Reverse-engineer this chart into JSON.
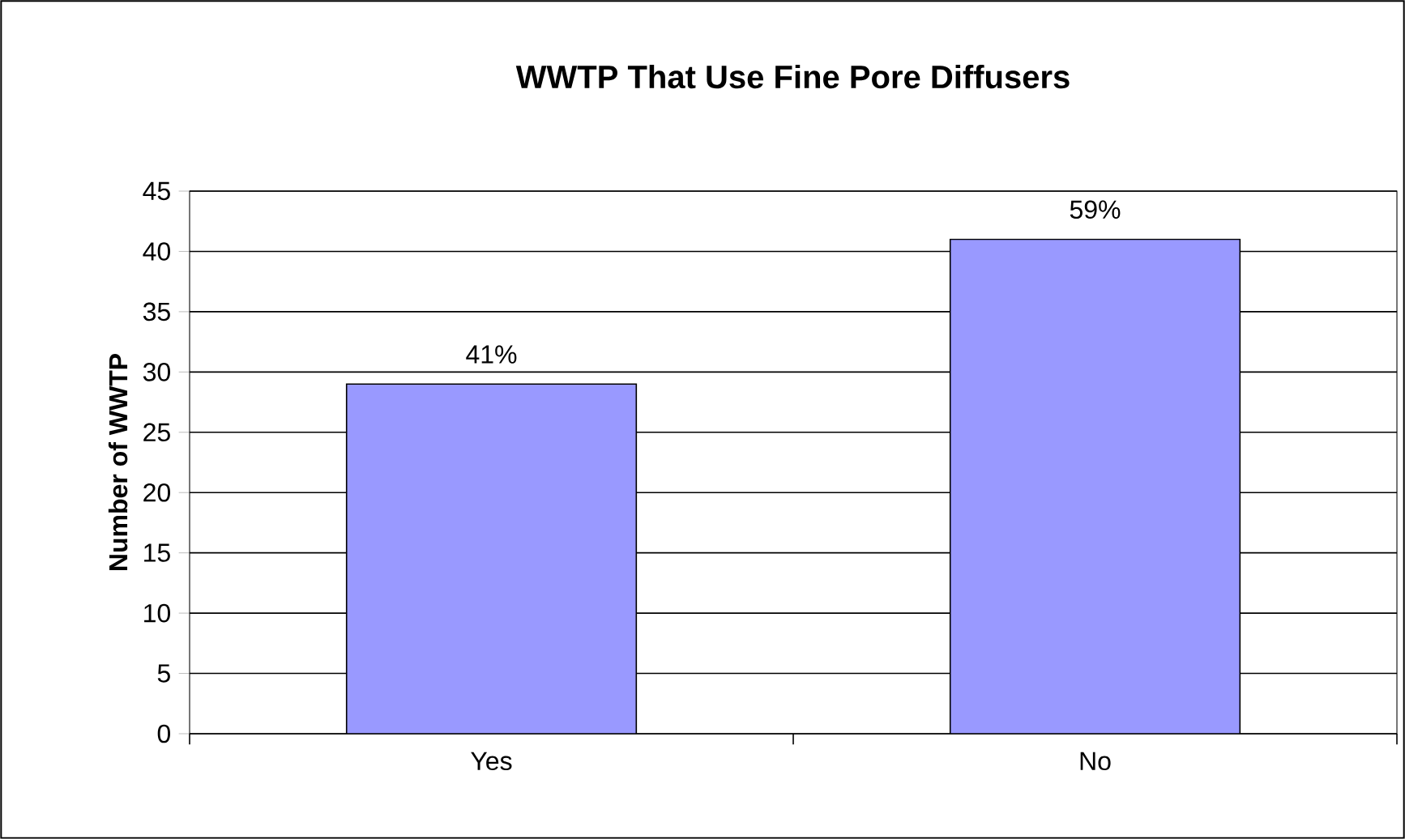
{
  "chart_data": {
    "type": "bar",
    "title": "WWTP That Use Fine Pore Diffusers",
    "ylabel": "Number of WWTP",
    "categories": [
      "Yes",
      "No"
    ],
    "values": [
      29,
      41
    ],
    "color": "#9999ff",
    "annotations": [
      {
        "text": "41%",
        "x": "Yes",
        "y": 29
      },
      {
        "text": "59%",
        "x": "No",
        "y": 41
      }
    ],
    "ylim": [
      0,
      45
    ],
    "yticks": [
      0,
      5,
      10,
      15,
      20,
      25,
      30,
      35,
      40,
      45
    ],
    "grid": "y"
  }
}
